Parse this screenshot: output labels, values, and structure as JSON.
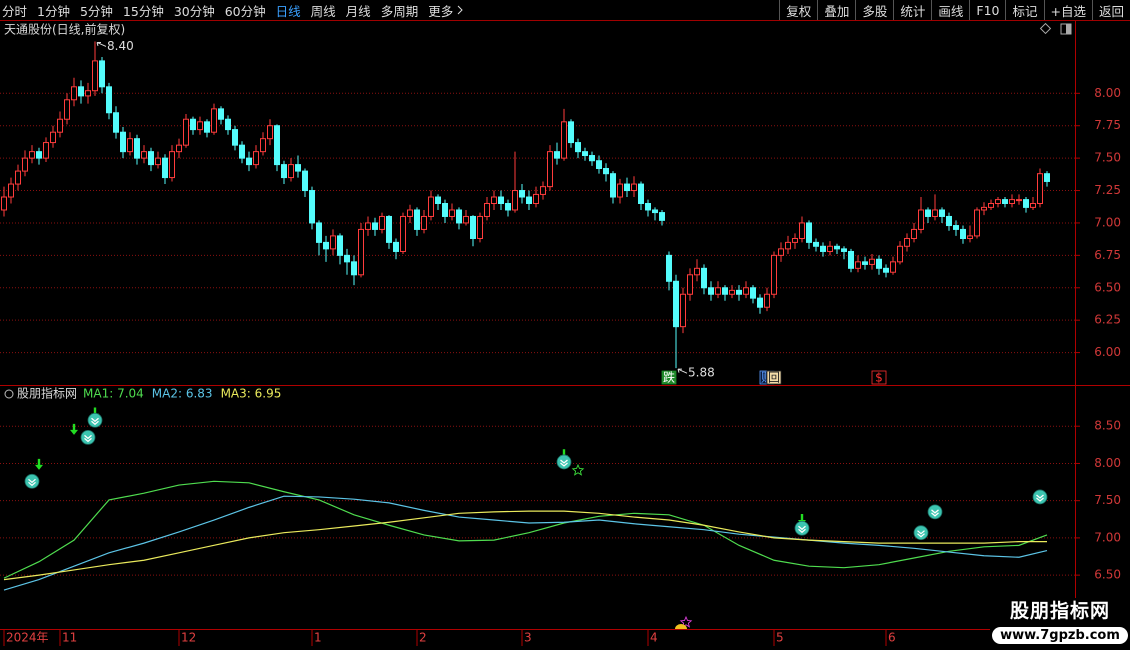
{
  "toolbar": {
    "left": [
      "分时",
      "1分钟",
      "5分钟",
      "15分钟",
      "30分钟",
      "60分钟",
      "日线",
      "周线",
      "月线",
      "多周期",
      "更多"
    ],
    "active_index": 6,
    "right": [
      "复权",
      "叠加",
      "多股",
      "统计",
      "画线",
      "F10",
      "标记",
      "+自选",
      "返回"
    ]
  },
  "watermark": {
    "title": "股朋指标网",
    "url": "www.7gpzb.com"
  },
  "chart_data": [
    {
      "type": "candlestick",
      "title": "天通股份(日线,前复权)",
      "up_color": "#ff3c3c",
      "down_color": "#54fcfc",
      "ylim": [
        5.75,
        8.55
      ],
      "yticks": [
        {
          "value": 6,
          "label": "6.00"
        },
        6.25,
        {
          "value": 6.5,
          "label": "6.50"
        },
        6.75,
        {
          "value": 7,
          "label": "7.00"
        },
        7.25,
        {
          "value": 7.5,
          "label": "7.50"
        },
        7.75,
        {
          "value": 8,
          "label": "8.00"
        }
      ],
      "grid": true,
      "open": [
        7.1,
        7.2,
        7.3,
        7.4,
        7.5,
        7.55,
        7.5,
        7.62,
        7.7,
        7.8,
        7.95,
        8.05,
        7.98,
        8.02,
        8.25,
        8.05,
        7.85,
        7.7,
        7.55,
        7.65,
        7.5,
        7.55,
        7.45,
        7.5,
        7.35,
        7.55,
        7.6,
        7.8,
        7.72,
        7.78,
        7.7,
        7.88,
        7.8,
        7.72,
        7.6,
        7.5,
        7.45,
        7.55,
        7.65,
        7.75,
        7.45,
        7.35,
        7.45,
        7.4,
        7.25,
        7.0,
        6.85,
        6.8,
        6.9,
        6.75,
        6.7,
        6.6,
        6.95,
        7.0,
        6.95,
        7.05,
        6.85,
        6.78,
        7.05,
        7.1,
        6.95,
        7.05,
        7.2,
        7.15,
        7.05,
        7.1,
        7.0,
        7.05,
        6.88,
        7.05,
        7.15,
        7.2,
        7.15,
        7.1,
        7.25,
        7.2,
        7.15,
        7.22,
        7.28,
        7.55,
        7.5,
        7.78,
        7.62,
        7.55,
        7.52,
        7.48,
        7.42,
        7.38,
        7.2,
        7.3,
        7.25,
        7.3,
        7.15,
        7.1,
        7.08,
        6.75,
        6.55,
        6.2,
        6.45,
        6.6,
        6.65,
        6.5,
        6.45,
        6.5,
        6.45,
        6.48,
        6.45,
        6.5,
        6.42,
        6.35,
        6.45,
        6.75,
        6.8,
        6.85,
        6.88,
        7.0,
        6.85,
        6.82,
        6.78,
        6.82,
        6.8,
        6.78,
        6.65,
        6.7,
        6.68,
        6.72,
        6.65,
        6.62,
        6.7,
        6.82,
        6.88,
        6.95,
        7.1,
        7.05,
        7.1,
        7.05,
        6.98,
        6.95,
        6.88,
        6.9,
        7.1,
        7.12,
        7.15,
        7.18,
        7.15,
        7.18,
        7.18,
        7.12,
        7.15,
        7.38
      ],
      "high": [
        7.28,
        7.35,
        7.45,
        7.56,
        7.6,
        7.58,
        7.66,
        7.75,
        7.86,
        8.0,
        8.12,
        8.1,
        8.08,
        8.4,
        8.28,
        8.08,
        7.9,
        7.74,
        7.7,
        7.68,
        7.6,
        7.58,
        7.55,
        7.53,
        7.6,
        7.65,
        7.84,
        7.82,
        7.82,
        7.8,
        7.92,
        7.9,
        7.83,
        7.75,
        7.63,
        7.55,
        7.6,
        7.7,
        7.8,
        7.76,
        7.48,
        7.5,
        7.52,
        7.42,
        7.28,
        7.02,
        6.9,
        6.95,
        6.92,
        6.8,
        6.75,
        7.0,
        7.05,
        7.04,
        7.08,
        7.06,
        6.88,
        7.08,
        7.14,
        7.12,
        7.1,
        7.25,
        7.22,
        7.18,
        7.15,
        7.12,
        7.1,
        7.06,
        7.08,
        7.2,
        7.25,
        7.25,
        7.18,
        7.55,
        7.3,
        7.25,
        7.28,
        7.32,
        7.6,
        7.62,
        7.88,
        7.8,
        7.65,
        7.58,
        7.55,
        7.52,
        7.46,
        7.4,
        7.34,
        7.35,
        7.36,
        7.32,
        7.18,
        7.12,
        7.1,
        6.78,
        6.6,
        6.5,
        6.65,
        6.72,
        6.68,
        6.55,
        6.55,
        6.52,
        6.52,
        6.52,
        6.55,
        6.52,
        6.45,
        6.5,
        6.78,
        6.85,
        6.9,
        6.92,
        7.05,
        7.02,
        6.88,
        6.85,
        6.86,
        6.84,
        6.82,
        6.8,
        6.75,
        6.74,
        6.76,
        6.75,
        6.68,
        6.74,
        6.86,
        6.92,
        7.0,
        7.2,
        7.12,
        7.22,
        7.12,
        7.08,
        7.02,
        6.98,
        6.98,
        7.12,
        7.16,
        7.18,
        7.2,
        7.2,
        7.22,
        7.22,
        7.2,
        7.2,
        7.42,
        7.4
      ],
      "low": [
        7.05,
        7.15,
        7.25,
        7.36,
        7.46,
        7.45,
        7.47,
        7.58,
        7.66,
        7.76,
        7.9,
        7.92,
        7.92,
        7.98,
        8.0,
        7.8,
        7.65,
        7.5,
        7.52,
        7.45,
        7.46,
        7.4,
        7.42,
        7.3,
        7.32,
        7.5,
        7.58,
        7.68,
        7.68,
        7.66,
        7.68,
        7.76,
        7.68,
        7.56,
        7.46,
        7.4,
        7.42,
        7.52,
        7.6,
        7.4,
        7.3,
        7.32,
        7.35,
        7.2,
        6.95,
        6.75,
        6.7,
        6.75,
        6.68,
        6.6,
        6.52,
        6.58,
        6.9,
        6.9,
        6.92,
        6.8,
        6.72,
        6.76,
        7.0,
        6.9,
        6.92,
        7.02,
        7.1,
        7.0,
        7.02,
        6.95,
        6.98,
        6.82,
        6.85,
        7.02,
        7.1,
        7.1,
        7.05,
        7.08,
        7.15,
        7.1,
        7.12,
        7.18,
        7.25,
        7.45,
        7.48,
        7.58,
        7.5,
        7.48,
        7.44,
        7.38,
        7.32,
        7.15,
        7.15,
        7.2,
        7.2,
        7.1,
        7.05,
        7.02,
        6.98,
        6.48,
        5.88,
        6.15,
        6.4,
        6.55,
        6.45,
        6.4,
        6.42,
        6.4,
        6.42,
        6.4,
        6.42,
        6.38,
        6.3,
        6.32,
        6.42,
        6.7,
        6.76,
        6.8,
        6.85,
        6.8,
        6.78,
        6.74,
        6.75,
        6.76,
        6.72,
        6.62,
        6.62,
        6.64,
        6.64,
        6.6,
        6.58,
        6.6,
        6.68,
        6.78,
        6.85,
        6.92,
        7.0,
        7.02,
        7.0,
        6.94,
        6.9,
        6.84,
        6.85,
        6.88,
        7.06,
        7.1,
        7.12,
        7.12,
        7.12,
        7.14,
        7.08,
        7.1,
        7.12,
        7.28
      ],
      "close": [
        7.2,
        7.3,
        7.4,
        7.5,
        7.55,
        7.5,
        7.62,
        7.7,
        7.8,
        7.95,
        8.05,
        7.98,
        8.02,
        8.25,
        8.05,
        7.85,
        7.7,
        7.55,
        7.65,
        7.5,
        7.55,
        7.45,
        7.5,
        7.35,
        7.55,
        7.6,
        7.8,
        7.72,
        7.78,
        7.7,
        7.88,
        7.8,
        7.72,
        7.6,
        7.5,
        7.45,
        7.55,
        7.65,
        7.75,
        7.45,
        7.35,
        7.45,
        7.4,
        7.25,
        7.0,
        6.85,
        6.8,
        6.9,
        6.75,
        6.7,
        6.6,
        6.95,
        7.0,
        6.95,
        7.05,
        6.85,
        6.78,
        7.05,
        7.1,
        6.95,
        7.05,
        7.2,
        7.15,
        7.05,
        7.1,
        7.0,
        7.05,
        6.88,
        7.05,
        7.15,
        7.2,
        7.15,
        7.1,
        7.25,
        7.2,
        7.15,
        7.22,
        7.28,
        7.55,
        7.5,
        7.78,
        7.62,
        7.55,
        7.52,
        7.48,
        7.42,
        7.38,
        7.2,
        7.3,
        7.25,
        7.3,
        7.15,
        7.1,
        7.08,
        7.02,
        6.55,
        6.2,
        6.45,
        6.6,
        6.65,
        6.5,
        6.45,
        6.5,
        6.45,
        6.48,
        6.45,
        6.5,
        6.42,
        6.35,
        6.45,
        6.75,
        6.8,
        6.85,
        6.88,
        7.0,
        6.85,
        6.82,
        6.78,
        6.82,
        6.8,
        6.78,
        6.65,
        6.7,
        6.68,
        6.72,
        6.65,
        6.62,
        6.7,
        6.82,
        6.88,
        6.95,
        7.1,
        7.05,
        7.1,
        7.05,
        6.98,
        6.95,
        6.88,
        6.9,
        7.1,
        7.12,
        7.15,
        7.18,
        7.15,
        7.18,
        7.18,
        7.12,
        7.15,
        7.38,
        7.32
      ],
      "annotations": [
        {
          "index": 13,
          "value": 8.4,
          "label": "8.40"
        },
        {
          "index": 96,
          "value": 5.88,
          "label": "5.88"
        }
      ],
      "events": [
        {
          "index": 95,
          "label": "跌",
          "bg": "#1f8a2a",
          "fg": "#ffffff"
        },
        {
          "index": 109,
          "label": "财",
          "bg": "#0a1a3a",
          "fg": "#5a9cff"
        },
        {
          "index": 110,
          "label": "回",
          "bg": "#f3dca8",
          "fg": "#222222"
        },
        {
          "index": 125,
          "label": "$",
          "bg": "#000000",
          "fg": "#ff3030"
        }
      ]
    },
    {
      "type": "line",
      "title": "股朋指标网",
      "ylim": [
        5.79,
        9.04
      ],
      "yticks": [
        {
          "value": 6.5,
          "label": "6.50"
        },
        {
          "value": 7,
          "label": "7.00"
        },
        {
          "value": 7.5,
          "label": "7.50"
        },
        {
          "value": 8,
          "label": "8.00"
        },
        {
          "value": 8.5,
          "label": "8.50"
        }
      ],
      "grid": true,
      "x": [
        0,
        5,
        10,
        15,
        20,
        25,
        30,
        35,
        40,
        45,
        50,
        55,
        60,
        65,
        70,
        75,
        80,
        85,
        90,
        95,
        100,
        105,
        110,
        115,
        120,
        125,
        130,
        135,
        140,
        145,
        149
      ],
      "series": [
        {
          "name": "MA1: 7.04",
          "color": "#4fdc4f",
          "values": [
            6.46,
            6.68,
            6.97,
            7.51,
            7.6,
            7.71,
            7.76,
            7.74,
            7.62,
            7.51,
            7.31,
            7.17,
            7.04,
            6.96,
            6.97,
            7.07,
            7.2,
            7.29,
            7.33,
            7.31,
            7.17,
            6.9,
            6.7,
            6.62,
            6.6,
            6.64,
            6.73,
            6.82,
            6.88,
            6.9,
            7.04
          ]
        },
        {
          "name": "MA2: 6.83",
          "color": "#5cc4e6",
          "values": [
            6.3,
            6.44,
            6.62,
            6.8,
            6.93,
            7.08,
            7.24,
            7.41,
            7.56,
            7.55,
            7.52,
            7.47,
            7.37,
            7.28,
            7.24,
            7.2,
            7.21,
            7.24,
            7.19,
            7.15,
            7.11,
            7.05,
            7.01,
            6.97,
            6.93,
            6.9,
            6.86,
            6.81,
            6.76,
            6.74,
            6.83
          ]
        },
        {
          "name": "MA3: 6.95",
          "color": "#eaea5c",
          "values": [
            6.44,
            6.5,
            6.57,
            6.64,
            6.7,
            6.8,
            6.9,
            7.0,
            7.07,
            7.11,
            7.16,
            7.21,
            7.27,
            7.33,
            7.35,
            7.36,
            7.36,
            7.33,
            7.28,
            7.24,
            7.17,
            7.08,
            7.0,
            6.97,
            6.95,
            6.93,
            6.93,
            6.93,
            6.93,
            6.95,
            6.95
          ]
        }
      ],
      "signals": {
        "color": "#3cc4b0",
        "x": [
          4,
          12,
          13,
          80,
          114,
          131,
          133,
          148
        ],
        "values": [
          7.76,
          8.35,
          8.58,
          8.02,
          7.13,
          7.07,
          7.35,
          7.55
        ]
      },
      "arrows": {
        "color": "#22dd22",
        "x": [
          5,
          10,
          13,
          80,
          114
        ],
        "values": [
          7.98,
          8.45,
          8.67,
          8.11,
          7.24
        ]
      },
      "month_labels": [
        "2024年",
        "11",
        "12",
        "1",
        "2",
        "3",
        "4",
        "5",
        "6"
      ],
      "month_index": [
        0,
        8,
        25,
        44,
        59,
        74,
        92,
        110,
        126
      ]
    }
  ]
}
